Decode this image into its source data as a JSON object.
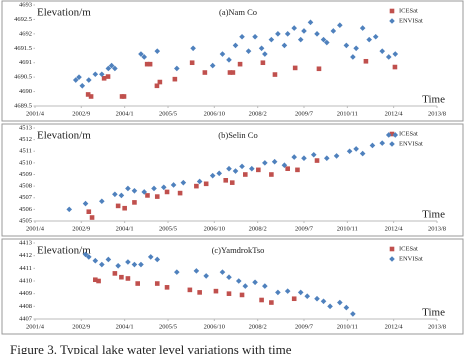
{
  "chart_data": [
    {
      "type": "scatter",
      "title": "(a)Nam Co",
      "y_label": "Elevation/m",
      "x_label": "Time",
      "xlim": [
        2001.25,
        2013.58
      ],
      "xticks": [
        {
          "value": 2001.25,
          "label": "2001/4"
        },
        {
          "value": 2002.67,
          "label": "2002/9"
        },
        {
          "value": 2004.0,
          "label": "2004/1"
        },
        {
          "value": 2005.33,
          "label": "2005/5"
        },
        {
          "value": 2006.75,
          "label": "2006/10"
        },
        {
          "value": 2008.08,
          "label": "2008/2"
        },
        {
          "value": 2009.5,
          "label": "2009/7"
        },
        {
          "value": 2010.83,
          "label": "2010/11"
        },
        {
          "value": 2012.25,
          "label": "2012/4"
        },
        {
          "value": 2013.58,
          "label": "2013/8"
        }
      ],
      "ylim": [
        4689.5,
        4693
      ],
      "yticks": [
        4689.5,
        4690,
        4690.5,
        4691,
        4691.5,
        4692,
        4692.5,
        4693
      ],
      "series": [
        {
          "name": "ICESat",
          "color": "#c0504d",
          "marker": "square",
          "x": [
            2002.88,
            2002.97,
            2003.37,
            2003.49,
            2003.92,
            2003.98,
            2004.69,
            2004.78,
            2004.99,
            2005.08,
            2005.54,
            2006.07,
            2006.46,
            2007.23,
            2007.32,
            2007.54,
            2008.24,
            2008.61,
            2009.23,
            2009.96,
            2011.4,
            2012.29
          ],
          "values": [
            4689.9,
            4689.83,
            4690.46,
            4690.52,
            4689.83,
            4689.83,
            4690.95,
            4690.95,
            4690.2,
            4690.33,
            4690.43,
            4691.0,
            4690.66,
            4690.66,
            4690.66,
            4690.95,
            4691.0,
            4690.59,
            4690.82,
            4690.79,
            4691.05,
            4690.85
          ]
        },
        {
          "name": "ENVISat",
          "color": "#4f81bd",
          "marker": "diamond",
          "x": [
            2002.5,
            2002.6,
            2002.7,
            2002.9,
            2003.1,
            2003.3,
            2003.5,
            2003.6,
            2003.7,
            2004.5,
            2004.6,
            2005.0,
            2005.6,
            2006.1,
            2006.7,
            2007.0,
            2007.2,
            2007.4,
            2007.6,
            2007.8,
            2008.0,
            2008.2,
            2008.3,
            2008.5,
            2008.7,
            2008.9,
            2009.0,
            2009.2,
            2009.4,
            2009.5,
            2009.7,
            2009.9,
            2010.1,
            2010.2,
            2010.4,
            2010.6,
            2010.8,
            2011.0,
            2011.1,
            2011.3,
            2011.5,
            2011.7,
            2011.9,
            2012.1,
            2012.3
          ],
          "values": [
            4690.4,
            4690.5,
            4690.2,
            4690.4,
            4690.6,
            4690.6,
            4690.8,
            4690.9,
            4690.8,
            4691.3,
            4691.2,
            4691.4,
            4690.8,
            4691.5,
            4690.9,
            4691.3,
            4691.1,
            4691.6,
            4691.9,
            4691.4,
            4691.9,
            4691.5,
            4691.3,
            4691.8,
            4692.0,
            4691.6,
            4692.0,
            4692.2,
            4691.8,
            4692.1,
            4692.4,
            4692.0,
            4691.8,
            4691.7,
            4692.1,
            4692.3,
            4691.6,
            4691.2,
            4691.5,
            4692.2,
            4691.8,
            4691.9,
            4691.4,
            4691.2,
            4691.3
          ]
        }
      ]
    },
    {
      "type": "scatter",
      "title": "(b)Selin Co",
      "y_label": "Elevation/m",
      "x_label": "Time",
      "xlim": [
        2001.25,
        2013.58
      ],
      "xticks": [
        {
          "value": 2001.25,
          "label": "2001/4"
        },
        {
          "value": 2002.67,
          "label": "2002/9"
        },
        {
          "value": 2004.0,
          "label": "2004/1"
        },
        {
          "value": 2005.33,
          "label": "2005/5"
        },
        {
          "value": 2006.75,
          "label": "2006/10"
        },
        {
          "value": 2008.08,
          "label": "2008/2"
        },
        {
          "value": 2009.5,
          "label": "2009/7"
        },
        {
          "value": 2010.83,
          "label": "2010/11"
        },
        {
          "value": 2012.25,
          "label": "2012/4"
        },
        {
          "value": 2013.58,
          "label": "2013/8"
        }
      ],
      "ylim": [
        4505,
        4513
      ],
      "yticks": [
        4505,
        4506,
        4507,
        4508,
        4509,
        4510,
        4511,
        4512,
        4513
      ],
      "series": [
        {
          "name": "ICESat",
          "color": "#c0504d",
          "marker": "square",
          "x": [
            2002.9,
            2003.0,
            2003.8,
            2004.0,
            2004.3,
            2004.7,
            2005.0,
            2005.3,
            2005.7,
            2006.2,
            2006.5,
            2007.1,
            2007.3,
            2007.7,
            2008.1,
            2008.5,
            2009.0,
            2009.3,
            2009.9
          ],
          "values": [
            4505.8,
            4505.3,
            4506.3,
            4506.1,
            4506.6,
            4507.2,
            4507.1,
            4507.5,
            4507.4,
            4508.0,
            4508.2,
            4508.5,
            4508.3,
            4509.0,
            4509.4,
            4509.0,
            4509.5,
            4509.4,
            4510.2
          ]
        },
        {
          "name": "ENVISat",
          "color": "#4f81bd",
          "marker": "diamond",
          "x": [
            2002.3,
            2002.8,
            2003.3,
            2003.7,
            2003.9,
            2004.1,
            2004.3,
            2004.6,
            2004.9,
            2005.2,
            2005.5,
            2005.8,
            2006.3,
            2006.7,
            2006.9,
            2007.2,
            2007.4,
            2007.6,
            2007.9,
            2008.3,
            2008.6,
            2008.9,
            2009.2,
            2009.5,
            2009.8,
            2010.2,
            2010.5,
            2010.9,
            2011.1,
            2011.3,
            2011.6,
            2011.9,
            2012.1,
            2012.3
          ],
          "values": [
            4506.0,
            4506.5,
            4506.7,
            4507.3,
            4507.2,
            4507.8,
            4507.6,
            4507.5,
            4507.8,
            4507.9,
            4508.1,
            4508.3,
            4508.4,
            4508.9,
            4509.1,
            4509.5,
            4509.3,
            4509.7,
            4509.5,
            4510.0,
            4510.1,
            4509.8,
            4510.5,
            4510.4,
            4510.7,
            4510.4,
            4510.6,
            4511.0,
            4511.2,
            4510.8,
            4511.5,
            4511.7,
            4512.4,
            4512.4
          ]
        }
      ]
    },
    {
      "type": "scatter",
      "title": "(c)YamdrokTso",
      "y_label": "Elevation/m",
      "x_label": "Time",
      "xlim": [
        2001.25,
        2013.58
      ],
      "xticks": [
        {
          "value": 2001.25,
          "label": "2001/4"
        },
        {
          "value": 2002.67,
          "label": "2002/9"
        },
        {
          "value": 2004.0,
          "label": "2004/1"
        },
        {
          "value": 2005.33,
          "label": "2005/5"
        },
        {
          "value": 2006.75,
          "label": "2006/10"
        },
        {
          "value": 2008.08,
          "label": "2008/2"
        },
        {
          "value": 2009.5,
          "label": "2009/7"
        },
        {
          "value": 2010.83,
          "label": "2010/11"
        },
        {
          "value": 2012.25,
          "label": "2012/4"
        },
        {
          "value": 2013.58,
          "label": "2013/8"
        }
      ],
      "ylim": [
        4407,
        4413
      ],
      "yticks": [
        4407,
        4408,
        4409,
        4410,
        4411,
        4412,
        4413
      ],
      "series": [
        {
          "name": "ICESat",
          "color": "#c0504d",
          "marker": "square",
          "x": [
            2003.1,
            2003.2,
            2003.7,
            2003.9,
            2004.1,
            2004.4,
            2005.0,
            2005.3,
            2006.0,
            2006.3,
            2006.8,
            2007.2,
            2007.6,
            2008.2,
            2008.5,
            2009.2
          ],
          "values": [
            4410.1,
            4410.0,
            4410.6,
            4410.3,
            4410.2,
            4409.8,
            4409.8,
            4409.5,
            4409.3,
            4409.1,
            4409.2,
            4409.0,
            4408.9,
            4408.5,
            4408.3,
            4408.6
          ]
        },
        {
          "name": "ENVISat",
          "color": "#4f81bd",
          "marker": "diamond",
          "x": [
            2002.8,
            2002.9,
            2003.1,
            2003.3,
            2003.5,
            2003.8,
            2004.1,
            2004.3,
            2004.5,
            2004.8,
            2005.0,
            2005.6,
            2006.2,
            2006.5,
            2007.0,
            2007.2,
            2007.5,
            2007.7,
            2008.0,
            2008.3,
            2008.7,
            2009.0,
            2009.4,
            2009.6,
            2009.9,
            2010.1,
            2010.3,
            2010.6,
            2010.8,
            2011.0
          ],
          "values": [
            4412.1,
            4411.9,
            4411.6,
            4411.3,
            4411.7,
            4411.2,
            4411.5,
            4411.3,
            4411.3,
            4411.9,
            4411.7,
            4410.7,
            4410.8,
            4410.4,
            4410.7,
            4410.3,
            4410.0,
            4409.6,
            4409.9,
            4409.6,
            4409.1,
            4409.2,
            4409.1,
            4408.8,
            4408.6,
            4408.4,
            4408.0,
            4408.3,
            4407.9,
            4407.4
          ]
        }
      ]
    }
  ],
  "caption": "Figure 3. Typical lake water level variations with time"
}
